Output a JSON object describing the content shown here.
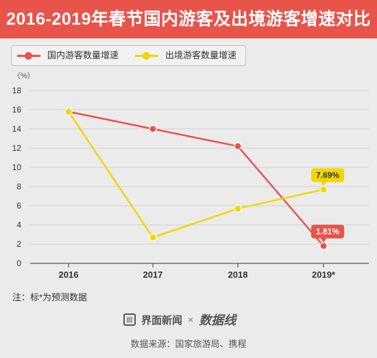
{
  "header": {
    "title": "2016-2019年春节国内游客及出境游客增速对比"
  },
  "legend": [
    {
      "label": "国内游客数量增速",
      "color": "#e8534a"
    },
    {
      "label": "出境游客数量增速",
      "color": "#f2d600"
    }
  ],
  "chart_data": {
    "type": "line",
    "categories": [
      "2016",
      "2017",
      "2018",
      "2019*"
    ],
    "series": [
      {
        "name": "国内游客数量增速",
        "color": "#e8534a",
        "values": [
          15.8,
          14.0,
          12.2,
          1.81
        ]
      },
      {
        "name": "出境游客数量增速",
        "color": "#f2d600",
        "values": [
          15.8,
          2.7,
          5.7,
          7.69
        ]
      }
    ],
    "yunit": "（%）",
    "ylim": [
      0,
      18
    ],
    "yticks": [
      0,
      2,
      4,
      6,
      8,
      10,
      12,
      14,
      16,
      18
    ],
    "grid": true,
    "legend_position": "top-left",
    "annotations": [
      {
        "series": 0,
        "index": 3,
        "text": "1.81%"
      },
      {
        "series": 1,
        "index": 3,
        "text": "7.69%"
      }
    ]
  },
  "footnote": "注：标*为预测数据",
  "footer": {
    "brand1": "界面新闻",
    "times": "×",
    "brand2": "数据线"
  },
  "source": "数据来源：国家旅游局、携程"
}
